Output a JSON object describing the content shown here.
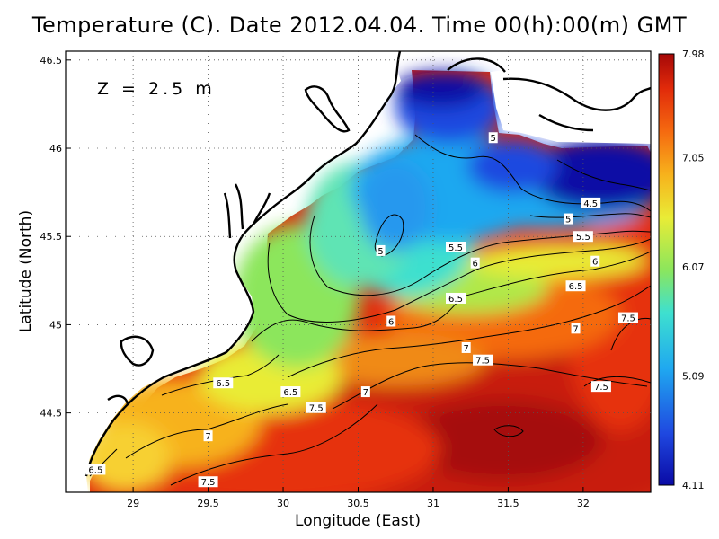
{
  "title": "Temperature (C). Date 2012.04.04. Time 00(h):00(m) GMT",
  "depth_label": "Z = 2.5 m",
  "colors": {
    "land": "#ffffff",
    "coast": "#000000",
    "scale": [
      "#0a0aa5",
      "#1f48e0",
      "#1fa8f0",
      "#3ee0cf",
      "#8ce65c",
      "#e9ec36",
      "#f7b21c",
      "#f56a10",
      "#e12a0a",
      "#a50808"
    ]
  },
  "chart_data": {
    "type": "heatmap",
    "xlabel": "Longitude (East)",
    "ylabel": "Latitude (North)",
    "xlim": [
      28.55,
      32.45
    ],
    "ylim": [
      44.05,
      46.55
    ],
    "x_ticks": [
      "29",
      "29.5",
      "30",
      "30.5",
      "31",
      "31.5",
      "32"
    ],
    "x_tick_values": [
      29,
      29.5,
      30,
      30.5,
      31,
      31.5,
      32
    ],
    "y_ticks": [
      "44.5",
      "45",
      "45.5",
      "46",
      "46.5"
    ],
    "y_tick_values": [
      44.5,
      45,
      45.5,
      46,
      46.5
    ],
    "grid": true,
    "colorbar": {
      "min": 4.11,
      "max": 7.98,
      "ticks": [
        "7.98",
        "7.05",
        "6.07",
        "5.09",
        "4.11"
      ],
      "tick_values": [
        7.98,
        7.05,
        6.07,
        5.09,
        4.11
      ]
    },
    "contour_labels": [
      {
        "text": "5",
        "lon": 31.4,
        "lat": 46.06
      },
      {
        "text": "4.5",
        "lon": 32.05,
        "lat": 45.69
      },
      {
        "text": "5",
        "lon": 31.9,
        "lat": 45.6
      },
      {
        "text": "5",
        "lon": 30.65,
        "lat": 45.42
      },
      {
        "text": "5.5",
        "lon": 31.15,
        "lat": 45.44
      },
      {
        "text": "5.5",
        "lon": 32.0,
        "lat": 45.5
      },
      {
        "text": "6",
        "lon": 31.28,
        "lat": 45.35
      },
      {
        "text": "6",
        "lon": 32.08,
        "lat": 45.36
      },
      {
        "text": "6.5",
        "lon": 31.15,
        "lat": 45.15
      },
      {
        "text": "6.5",
        "lon": 31.95,
        "lat": 45.22
      },
      {
        "text": "6",
        "lon": 30.72,
        "lat": 45.02
      },
      {
        "text": "7",
        "lon": 31.22,
        "lat": 44.87
      },
      {
        "text": "7",
        "lon": 31.95,
        "lat": 44.98
      },
      {
        "text": "7.5",
        "lon": 32.3,
        "lat": 45.04
      },
      {
        "text": "7.5",
        "lon": 31.33,
        "lat": 44.8
      },
      {
        "text": "7.5",
        "lon": 32.12,
        "lat": 44.65
      },
      {
        "text": "6.5",
        "lon": 29.6,
        "lat": 44.67
      },
      {
        "text": "6.5",
        "lon": 30.05,
        "lat": 44.62
      },
      {
        "text": "7",
        "lon": 30.55,
        "lat": 44.62
      },
      {
        "text": "7.5",
        "lon": 30.22,
        "lat": 44.53
      },
      {
        "text": "7",
        "lon": 29.5,
        "lat": 44.37
      },
      {
        "text": "7.5",
        "lon": 29.5,
        "lat": 44.11
      },
      {
        "text": "6.5",
        "lon": 28.75,
        "lat": 44.18
      }
    ]
  }
}
